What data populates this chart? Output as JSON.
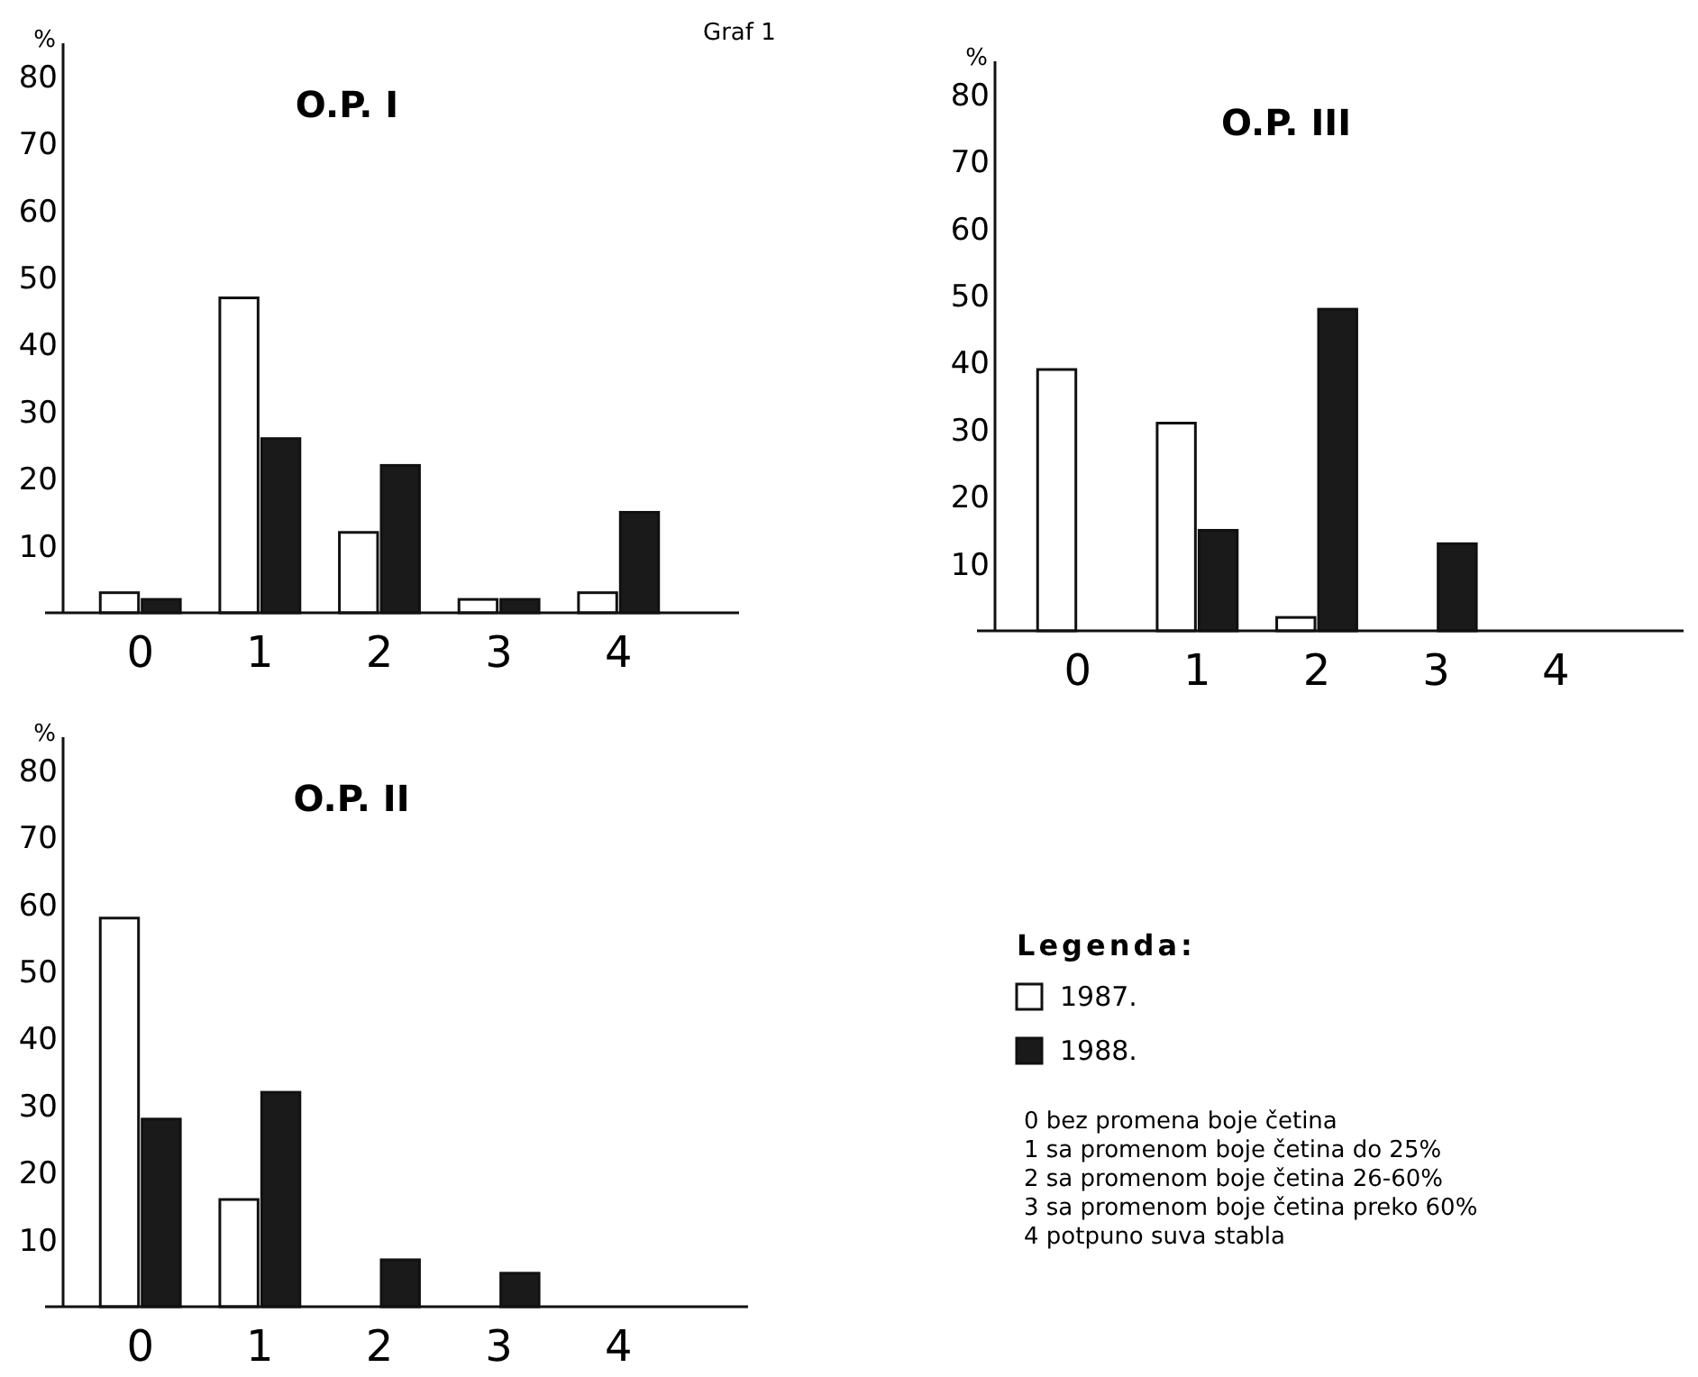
{
  "chart_data": [
    {
      "type": "bar",
      "title": "O.P. I",
      "ylabel": "%",
      "annotations": [
        "Graf 1"
      ],
      "categories": [
        "0",
        "1",
        "2",
        "3",
        "4"
      ],
      "series": [
        {
          "color": "#ffffff",
          "values": [
            3,
            47,
            12,
            2,
            3
          ]
        },
        {
          "color": "#1a1a1a",
          "values": [
            2,
            26,
            22,
            2,
            15
          ]
        }
      ],
      "ylim": [
        0,
        85
      ],
      "yticks": [
        10,
        20,
        30,
        40,
        50,
        60,
        70,
        80
      ]
    },
    {
      "type": "bar",
      "title": "O.P. III",
      "ylabel": "%",
      "legend": "bottom",
      "legend_title": "Legenda:",
      "annotations": [
        "0 bez promena boje četina",
        "1 sa promenom boje četina do 25%",
        "2 sa promenom boje četina 26-60%",
        "3 sa promenom boje četina preko 60%",
        "4 potpuno suva stabla"
      ],
      "categories": [
        "0",
        "1",
        "2",
        "3",
        "4"
      ],
      "series": [
        {
          "name": "1987.",
          "color": "#ffffff",
          "values": [
            39,
            31,
            2,
            0,
            0
          ]
        },
        {
          "name": "1988.",
          "color": "#1a1a1a",
          "values": [
            0,
            15,
            48,
            13,
            0
          ]
        }
      ],
      "ylim": [
        0,
        85
      ],
      "yticks": [
        10,
        20,
        30,
        40,
        50,
        60,
        70,
        80
      ]
    },
    {
      "type": "bar",
      "title": "O.P. II",
      "ylabel": "%",
      "categories": [
        "0",
        "1",
        "2",
        "3",
        "4"
      ],
      "series": [
        {
          "color": "#ffffff",
          "values": [
            58,
            16,
            0,
            0,
            0
          ]
        },
        {
          "color": "#1a1a1a",
          "values": [
            28,
            32,
            7,
            5,
            0
          ]
        }
      ],
      "ylim": [
        0,
        85
      ],
      "yticks": [
        10,
        20,
        30,
        40,
        50,
        60,
        70,
        80
      ]
    }
  ]
}
